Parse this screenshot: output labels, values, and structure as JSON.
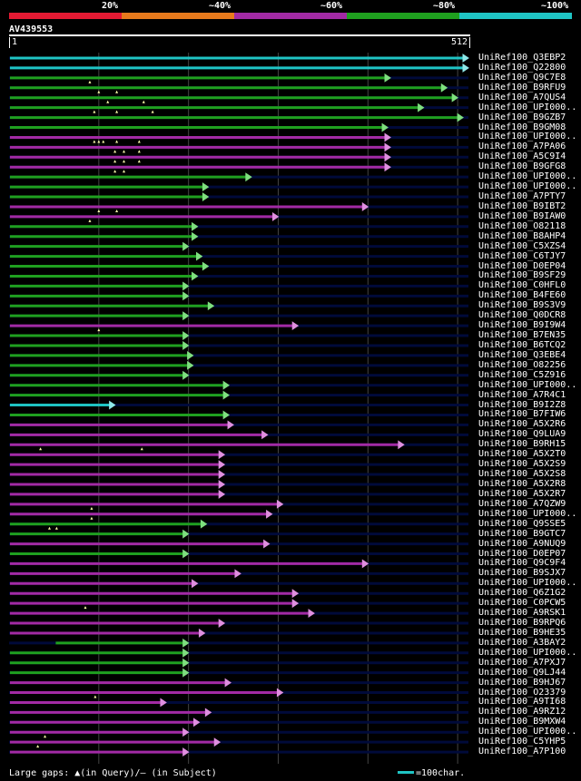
{
  "legend": [
    {
      "label": "20%",
      "color": "#e41a33"
    },
    {
      "label": "~40%",
      "color": "#e87a1c"
    },
    {
      "label": "~60%",
      "color": "#a22aa4"
    },
    {
      "label": "~80%",
      "color": "#1fa01f"
    },
    {
      "label": "~100%",
      "color": "#1fc4c4"
    }
  ],
  "query": {
    "id": "AV439553",
    "start": "1",
    "end": "512"
  },
  "colors": {
    "cyan": "#1fc4c4",
    "green": "#1fa01f",
    "magenta": "#a22aa4",
    "green_head": "#7fdf7f",
    "magenta_head": "#df8fdf",
    "cyan_head": "#8fe8e8",
    "track": "#000a3a",
    "gridline": "#444"
  },
  "footer": {
    "gaps_text": "Large gaps: ▲(in Query)/– (in Subject)",
    "scale_label": "=100char."
  },
  "hits": [
    {
      "name": "UniRef100_Q3EBP2",
      "end": 512,
      "color": "cyan"
    },
    {
      "name": "UniRef100_Q22800",
      "end": 512,
      "color": "cyan"
    },
    {
      "name": "UniRef100_Q9C7E8",
      "end": 425,
      "color": "green",
      "gaps": [
        90
      ]
    },
    {
      "name": "UniRef100_B9RFU9",
      "end": 488,
      "color": "green",
      "gaps": [
        100,
        120
      ]
    },
    {
      "name": "UniRef100_A7QUS4",
      "end": 500,
      "color": "green",
      "gaps": [
        110,
        150
      ]
    },
    {
      "name": "UniRef100_UPI000..",
      "end": 462,
      "color": "green",
      "gaps": [
        95,
        120,
        160
      ]
    },
    {
      "name": "UniRef100_B9GZB7",
      "end": 506,
      "color": "green"
    },
    {
      "name": "UniRef100_B9GM08",
      "end": 422,
      "color": "green"
    },
    {
      "name": "UniRef100_UPI000..",
      "end": 425,
      "color": "magenta",
      "gaps": [
        95,
        100,
        105,
        120,
        145
      ]
    },
    {
      "name": "UniRef100_A7PA06",
      "end": 425,
      "color": "magenta",
      "gaps": [
        118,
        128,
        145
      ]
    },
    {
      "name": "UniRef100_A5C9I4",
      "end": 425,
      "color": "magenta",
      "gaps": [
        118,
        128,
        145
      ]
    },
    {
      "name": "UniRef100_B9GFG8",
      "end": 425,
      "color": "magenta",
      "gaps": [
        118,
        128
      ]
    },
    {
      "name": "UniRef100_UPI000..",
      "end": 270,
      "color": "green"
    },
    {
      "name": "UniRef100_UPI000..",
      "end": 222,
      "color": "green"
    },
    {
      "name": "UniRef100_A7PTY7",
      "end": 222,
      "color": "green"
    },
    {
      "name": "UniRef100_B9IBT2",
      "end": 400,
      "color": "magenta",
      "gaps": [
        100,
        120
      ]
    },
    {
      "name": "UniRef100_B9IAW0",
      "end": 300,
      "color": "magenta",
      "gaps": [
        90
      ]
    },
    {
      "name": "UniRef100_O82118",
      "end": 210,
      "color": "green"
    },
    {
      "name": "UniRef100_B8AHP4",
      "end": 210,
      "color": "green"
    },
    {
      "name": "UniRef100_C5XZS4",
      "end": 200,
      "color": "green"
    },
    {
      "name": "UniRef100_C6TJY7",
      "end": 215,
      "color": "green"
    },
    {
      "name": "UniRef100_D0EP04",
      "end": 222,
      "color": "green"
    },
    {
      "name": "UniRef100_B9SF29",
      "end": 210,
      "color": "green"
    },
    {
      "name": "UniRef100_C0HFL0",
      "end": 200,
      "color": "green"
    },
    {
      "name": "UniRef100_B4FE60",
      "end": 200,
      "color": "green"
    },
    {
      "name": "UniRef100_B9S3V9",
      "end": 228,
      "color": "green"
    },
    {
      "name": "UniRef100_Q0DCR8",
      "end": 200,
      "color": "green"
    },
    {
      "name": "UniRef100_B9I9W4",
      "end": 322,
      "color": "magenta",
      "gaps": [
        100
      ]
    },
    {
      "name": "UniRef100_B7EN35",
      "end": 200,
      "color": "green"
    },
    {
      "name": "UniRef100_B6TCQ2",
      "end": 200,
      "color": "green"
    },
    {
      "name": "UniRef100_Q3EBE4",
      "end": 205,
      "color": "green"
    },
    {
      "name": "UniRef100_O82256",
      "end": 205,
      "color": "green"
    },
    {
      "name": "UniRef100_C5Z916",
      "end": 200,
      "color": "green"
    },
    {
      "name": "UniRef100_UPI000..",
      "end": 245,
      "color": "green"
    },
    {
      "name": "UniRef100_A7R4C1",
      "end": 245,
      "color": "green"
    },
    {
      "name": "UniRef100_B9I2Z8",
      "end": 118,
      "color": "cyan"
    },
    {
      "name": "UniRef100_B7FIW6",
      "end": 245,
      "color": "green"
    },
    {
      "name": "UniRef100_A5X2R6",
      "end": 250,
      "color": "magenta"
    },
    {
      "name": "UniRef100_Q9LUA9",
      "end": 288,
      "color": "magenta"
    },
    {
      "name": "UniRef100_B9RH15",
      "end": 440,
      "color": "magenta",
      "gaps": [
        35,
        148
      ]
    },
    {
      "name": "UniRef100_A5X2T0",
      "end": 240,
      "color": "magenta"
    },
    {
      "name": "UniRef100_A5X2S9",
      "end": 240,
      "color": "magenta"
    },
    {
      "name": "UniRef100_A5X2S8",
      "end": 240,
      "color": "magenta"
    },
    {
      "name": "UniRef100_A5X2R8",
      "end": 240,
      "color": "magenta"
    },
    {
      "name": "UniRef100_A5X2R7",
      "end": 240,
      "color": "magenta"
    },
    {
      "name": "UniRef100_A7QZW9",
      "end": 305,
      "color": "magenta",
      "gaps": [
        92
      ]
    },
    {
      "name": "UniRef100_UPI000..",
      "end": 293,
      "color": "magenta",
      "gaps": [
        92
      ]
    },
    {
      "name": "UniRef100_Q9SSE5",
      "end": 220,
      "color": "green",
      "gaps": [
        45,
        53
      ]
    },
    {
      "name": "UniRef100_B9GTC7",
      "end": 200,
      "color": "green"
    },
    {
      "name": "UniRef100_A9NUQ9",
      "end": 290,
      "color": "magenta"
    },
    {
      "name": "UniRef100_D0EP07",
      "end": 200,
      "color": "green"
    },
    {
      "name": "UniRef100_Q9C9F4",
      "end": 400,
      "color": "magenta"
    },
    {
      "name": "UniRef100_B9SJX7",
      "end": 258,
      "color": "magenta"
    },
    {
      "name": "UniRef100_UPI000..",
      "end": 210,
      "color": "magenta"
    },
    {
      "name": "UniRef100_Q6Z1G2",
      "end": 322,
      "color": "magenta"
    },
    {
      "name": "UniRef100_C0PCW5",
      "end": 322,
      "color": "magenta",
      "gaps": [
        85
      ]
    },
    {
      "name": "UniRef100_A9RSK1",
      "end": 340,
      "color": "magenta"
    },
    {
      "name": "UniRef100_B9RPQ6",
      "end": 240,
      "color": "magenta"
    },
    {
      "name": "UniRef100_B9HE35",
      "end": 218,
      "color": "magenta"
    },
    {
      "name": "UniRef100_A3BAY2",
      "end": 200,
      "color": "green",
      "start": 52
    },
    {
      "name": "UniRef100_UPI000..",
      "end": 200,
      "color": "green"
    },
    {
      "name": "UniRef100_A7PXJ7",
      "end": 200,
      "color": "green"
    },
    {
      "name": "UniRef100_Q9LJ44",
      "end": 200,
      "color": "green"
    },
    {
      "name": "UniRef100_B9HJ67",
      "end": 247,
      "color": "magenta"
    },
    {
      "name": "UniRef100_O23379",
      "end": 305,
      "color": "magenta",
      "gaps": [
        96
      ]
    },
    {
      "name": "UniRef100_A9TI68",
      "end": 175,
      "color": "magenta"
    },
    {
      "name": "UniRef100_A9RZ12",
      "end": 225,
      "color": "magenta"
    },
    {
      "name": "UniRef100_B9MXW4",
      "end": 212,
      "color": "magenta"
    },
    {
      "name": "UniRef100_UPI000..",
      "end": 200,
      "color": "magenta",
      "gaps": [
        40
      ]
    },
    {
      "name": "UniRef100_C5YHP5",
      "end": 235,
      "color": "magenta",
      "gaps": [
        32
      ]
    },
    {
      "name": "UniRef100_A7P100",
      "end": 200,
      "color": "magenta"
    }
  ]
}
